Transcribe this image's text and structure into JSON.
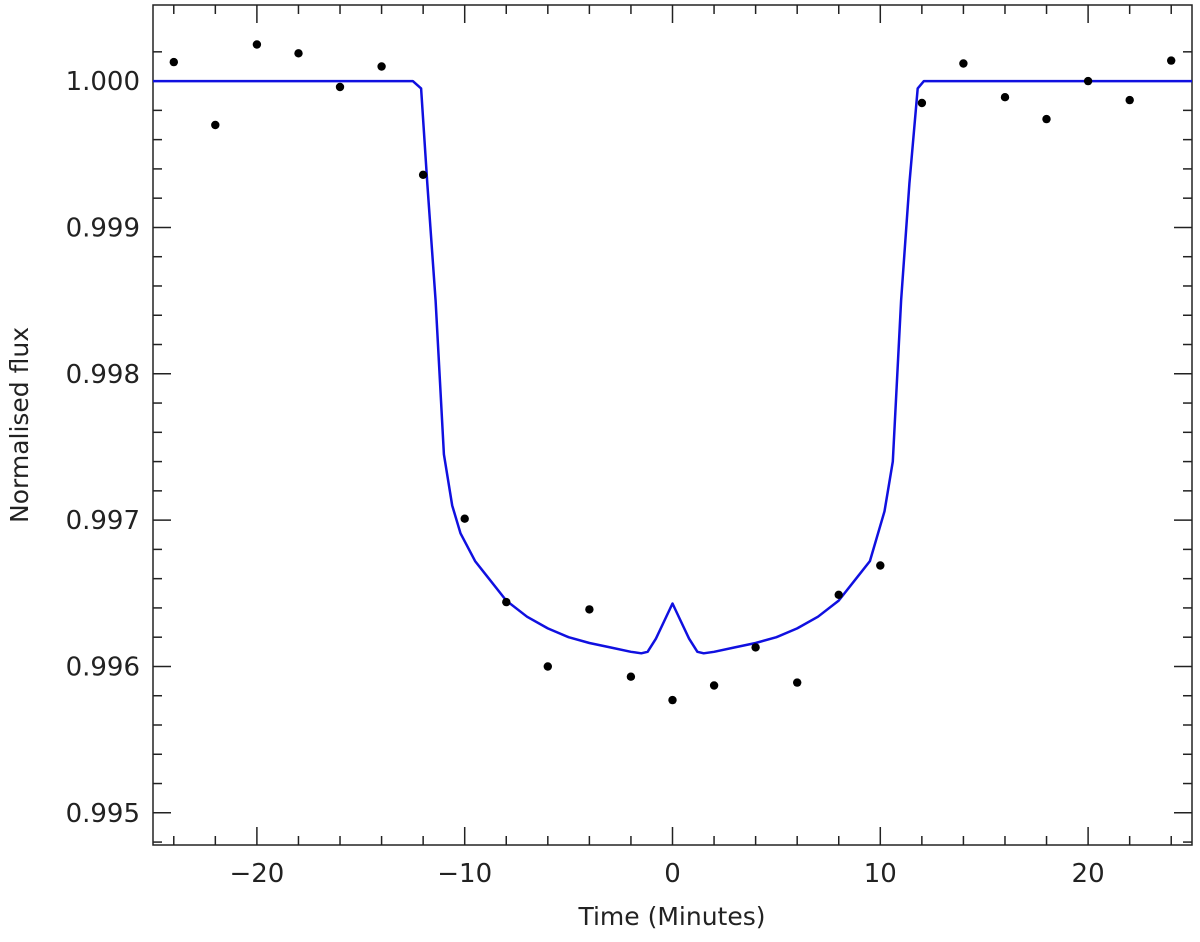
{
  "chart_data": {
    "type": "scatter",
    "title": "",
    "xlabel": "Time (Minutes)",
    "ylabel": "Normalised flux",
    "xlim": [
      -25,
      25
    ],
    "ylim": [
      0.99478,
      1.00052
    ],
    "xticks": [
      -20,
      -10,
      0,
      10,
      20
    ],
    "xtick_labels": [
      "−20",
      "−10",
      "0",
      "10",
      "20"
    ],
    "yticks": [
      0.995,
      0.996,
      0.997,
      0.998,
      0.999,
      1.0
    ],
    "ytick_labels": [
      "0.995",
      "0.996",
      "0.997",
      "0.998",
      "0.999",
      "1.000"
    ],
    "grid": false,
    "legend": "none",
    "series": [
      {
        "kind": "points",
        "color": "#000000",
        "x": [
          -24,
          -22,
          -20,
          -18,
          -16,
          -14,
          -12,
          -10,
          -8,
          -6,
          -4,
          -2,
          0,
          2,
          4,
          6,
          8,
          10,
          12,
          14,
          16,
          18,
          20,
          22,
          24
        ],
        "y": [
          1.00013,
          0.9997,
          1.00025,
          1.00019,
          0.99996,
          1.0001,
          0.99936,
          0.99701,
          0.99644,
          0.996,
          0.99639,
          0.99593,
          0.99577,
          0.99587,
          0.99613,
          0.99589,
          0.99649,
          0.99669,
          0.99985,
          1.00012,
          0.99989,
          0.99974,
          1.0,
          0.99987,
          1.00014
        ]
      },
      {
        "kind": "line",
        "color": "#1010e0",
        "x": [
          -25,
          -12.5,
          -12.1,
          -11.8,
          -11.4,
          -11.0,
          -10.6,
          -10.2,
          -9.5,
          -9,
          -8,
          -7,
          -6,
          -5,
          -4,
          -3,
          -2,
          -1.5,
          -1.2,
          -0.8,
          -0.4,
          0,
          0.4,
          0.8,
          1.2,
          1.5,
          2,
          3,
          4,
          5,
          6,
          7,
          8,
          9,
          9.5,
          10.2,
          10.6,
          11.0,
          11.4,
          11.8,
          12.1,
          12.5,
          25
        ],
        "y": [
          1.0,
          1.0,
          0.99995,
          0.9993,
          0.9985,
          0.99745,
          0.9971,
          0.99691,
          0.99672,
          0.99663,
          0.99645,
          0.99634,
          0.99626,
          0.9962,
          0.99616,
          0.99613,
          0.9961,
          0.99609,
          0.9961,
          0.99619,
          0.99631,
          0.99643,
          0.99631,
          0.99619,
          0.9961,
          0.99609,
          0.9961,
          0.99613,
          0.99616,
          0.9962,
          0.99626,
          0.99634,
          0.99645,
          0.99663,
          0.99672,
          0.99706,
          0.9974,
          0.9985,
          0.9993,
          0.99995,
          1.0,
          1.0,
          1.0
        ]
      }
    ]
  }
}
